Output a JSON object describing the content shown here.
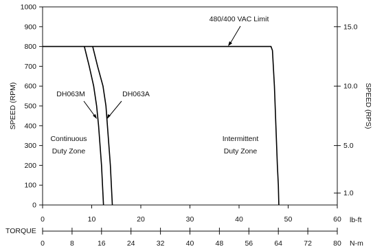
{
  "chart_data": {
    "type": "line",
    "title": "",
    "xlabel": "TORQUE",
    "ylabel": "SPEED (RPM)",
    "ylabel_right": "SPEED (RPS)",
    "ylim": [
      0,
      1000
    ],
    "xlim": [
      0,
      60
    ],
    "grid": false,
    "yticks": [
      0,
      100,
      200,
      300,
      400,
      500,
      600,
      700,
      800,
      900,
      1000
    ],
    "x_ticks_lbft": [
      0,
      10,
      20,
      30,
      40,
      50,
      60
    ],
    "x_unit_lbft": "lb-ft",
    "x_ticks_nm": [
      0,
      8,
      16,
      24,
      32,
      40,
      48,
      56,
      64,
      72,
      80
    ],
    "x_unit_nm": "N-m",
    "rps_ticks": [
      {
        "label": "15.0",
        "rpm": 900
      },
      {
        "label": "10.0",
        "rpm": 600
      },
      {
        "label": "5.0",
        "rpm": 300
      },
      {
        "label": "1.0",
        "rpm": 60
      }
    ],
    "series": [
      {
        "name": "DH063M",
        "points": [
          [
            8.5,
            800
          ],
          [
            9.5,
            700
          ],
          [
            10.4,
            600
          ],
          [
            11,
            500
          ],
          [
            11.4,
            400
          ],
          [
            11.7,
            300
          ],
          [
            12,
            200
          ],
          [
            12.2,
            100
          ],
          [
            12.4,
            0
          ]
        ]
      },
      {
        "name": "DH063A",
        "points": [
          [
            10.2,
            800
          ],
          [
            11.2,
            700
          ],
          [
            12.3,
            600
          ],
          [
            12.9,
            500
          ],
          [
            13.2,
            400
          ],
          [
            13.5,
            300
          ],
          [
            13.8,
            200
          ],
          [
            14,
            100
          ],
          [
            14.2,
            0
          ]
        ]
      },
      {
        "name": "480/400 VAC Limit",
        "points": [
          [
            0,
            800
          ],
          [
            46.5,
            800
          ],
          [
            46.8,
            780
          ],
          [
            47.2,
            600
          ],
          [
            47.5,
            400
          ],
          [
            47.8,
            200
          ],
          [
            48,
            100
          ],
          [
            48.1,
            0
          ]
        ]
      }
    ],
    "annotations": [
      {
        "text": "480/400 VAC Limit"
      },
      {
        "text": "DH063M"
      },
      {
        "text": "DH063A"
      },
      {
        "text_lines": [
          "Continuous",
          "Duty Zone"
        ]
      },
      {
        "text_lines": [
          "Intermittent",
          "Duty Zone"
        ]
      }
    ]
  }
}
